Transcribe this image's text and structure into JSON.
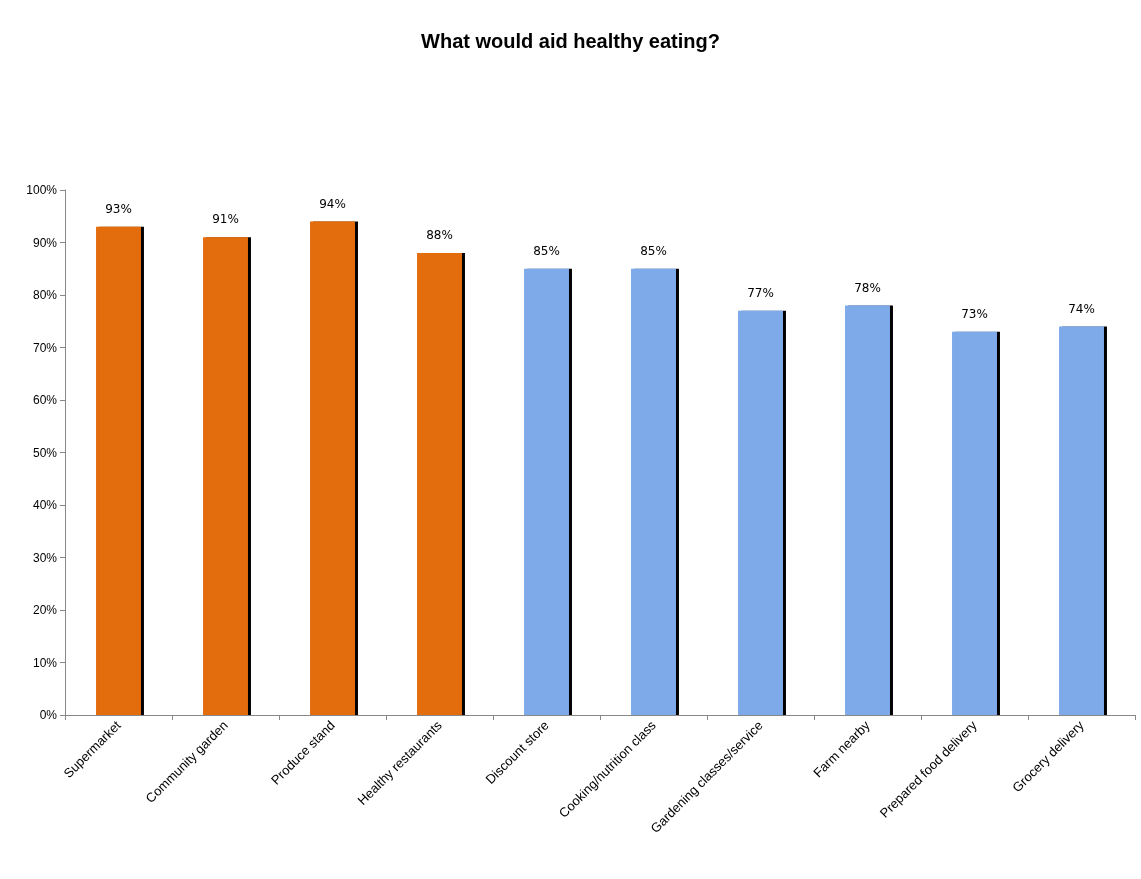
{
  "chart_data": {
    "type": "bar",
    "title": "What would aid healthy eating?",
    "categories": [
      "Supermarket",
      "Community garden",
      "Produce stand",
      "Healthy restaurants",
      "Discount store",
      "Cooking/nutrition class",
      "Gardening classes/service",
      "Farm nearby",
      "Prepared food delivery",
      "Grocery delivery"
    ],
    "values": [
      93,
      91,
      94,
      88,
      85,
      85,
      77,
      78,
      73,
      74
    ],
    "value_labels": [
      "93%",
      "91%",
      "94%",
      "88%",
      "85%",
      "85%",
      "77%",
      "78%",
      "73%",
      "74%"
    ],
    "colors": [
      "#e36c0a",
      "#e36c0a",
      "#e36c0a",
      "#e36c0a",
      "#7eaaea",
      "#7eaaea",
      "#7eaaea",
      "#7eaaea",
      "#7eaaea",
      "#7eaaea"
    ],
    "ylim": [
      0,
      100
    ],
    "yticks": [
      {
        "value": 0,
        "label": "0%"
      },
      {
        "value": 10,
        "label": "10%"
      },
      {
        "value": 20,
        "label": "20%"
      },
      {
        "value": 30,
        "label": "30%"
      },
      {
        "value": 40,
        "label": "40%"
      },
      {
        "value": 50,
        "label": "50%"
      },
      {
        "value": 60,
        "label": "60%"
      },
      {
        "value": 70,
        "label": "70%"
      },
      {
        "value": 80,
        "label": "80%"
      },
      {
        "value": 90,
        "label": "90%"
      },
      {
        "value": 100,
        "label": "100%"
      }
    ],
    "grid": false
  }
}
